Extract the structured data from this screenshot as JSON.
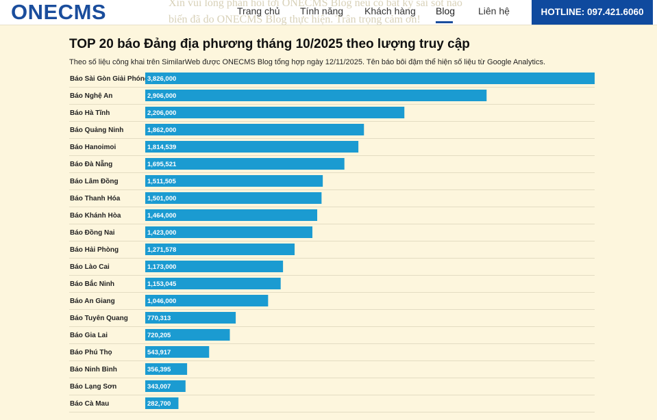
{
  "header": {
    "logo": "ONECMS",
    "ghost_line1": "Xin vui lòng phản hồi tới ONECMS Blog nếu có bất kỳ sai sót nào",
    "ghost_line2": "biến đã do ONECMS Blog thực hiện. Trân trọng cảm ơn!",
    "nav": [
      {
        "label": "Trang chủ"
      },
      {
        "label": "Tính năng"
      },
      {
        "label": "Khách hàng"
      },
      {
        "label": "Blog"
      },
      {
        "label": "Liên hệ"
      }
    ],
    "hotline": "HOTLINE: 097.421.6060"
  },
  "colors": {
    "bar": "#1b9bd1",
    "brand": "#1a4d9c",
    "background": "#fdf6dd"
  },
  "chart_data": {
    "type": "bar",
    "orientation": "horizontal",
    "title": "TOP 20 báo Đảng địa phương tháng 10/2025 theo lượng truy cập",
    "subtitle": "Theo số liệu công khai trên SimilarWeb được ONECMS Blog tổng hợp ngày 12/11/2025. Tên báo bôi đậm thể hiện số liệu từ Google Analytics.",
    "categories": [
      "Báo Sài Gòn Giải Phóng",
      "Báo Nghệ An",
      "Báo Hà Tĩnh",
      "Báo Quảng Ninh",
      "Báo Hanoimoi",
      "Báo Đà Nẵng",
      "Báo Lâm Đồng",
      "Báo Thanh Hóa",
      "Báo Khánh Hòa",
      "Báo Đồng Nai",
      "Báo Hải Phòng",
      "Báo Lào Cai",
      "Báo Bắc Ninh",
      "Báo An Giang",
      "Báo Tuyên Quang",
      "Báo Gia Lai",
      "Báo Phú Thọ",
      "Báo Ninh Bình",
      "Báo Lạng Sơn",
      "Báo Cà Mau"
    ],
    "values": [
      3826000,
      2906000,
      2206000,
      1862000,
      1814539,
      1695521,
      1511505,
      1501000,
      1464000,
      1423000,
      1271578,
      1173000,
      1153045,
      1046000,
      770313,
      720205,
      543917,
      356395,
      343007,
      282700
    ],
    "value_labels": [
      "3,826,000",
      "2,906,000",
      "2,206,000",
      "1,862,000",
      "1,814,539",
      "1,695,521",
      "1,511,505",
      "1,501,000",
      "1,464,000",
      "1,423,000",
      "1,271,578",
      "1,173,000",
      "1,153,045",
      "1,046,000",
      "770,313",
      "720,205",
      "543,917",
      "356,395",
      "343,007",
      "282,700"
    ],
    "xlabel": "",
    "ylabel": "",
    "xlim": [
      0,
      3826000
    ]
  }
}
